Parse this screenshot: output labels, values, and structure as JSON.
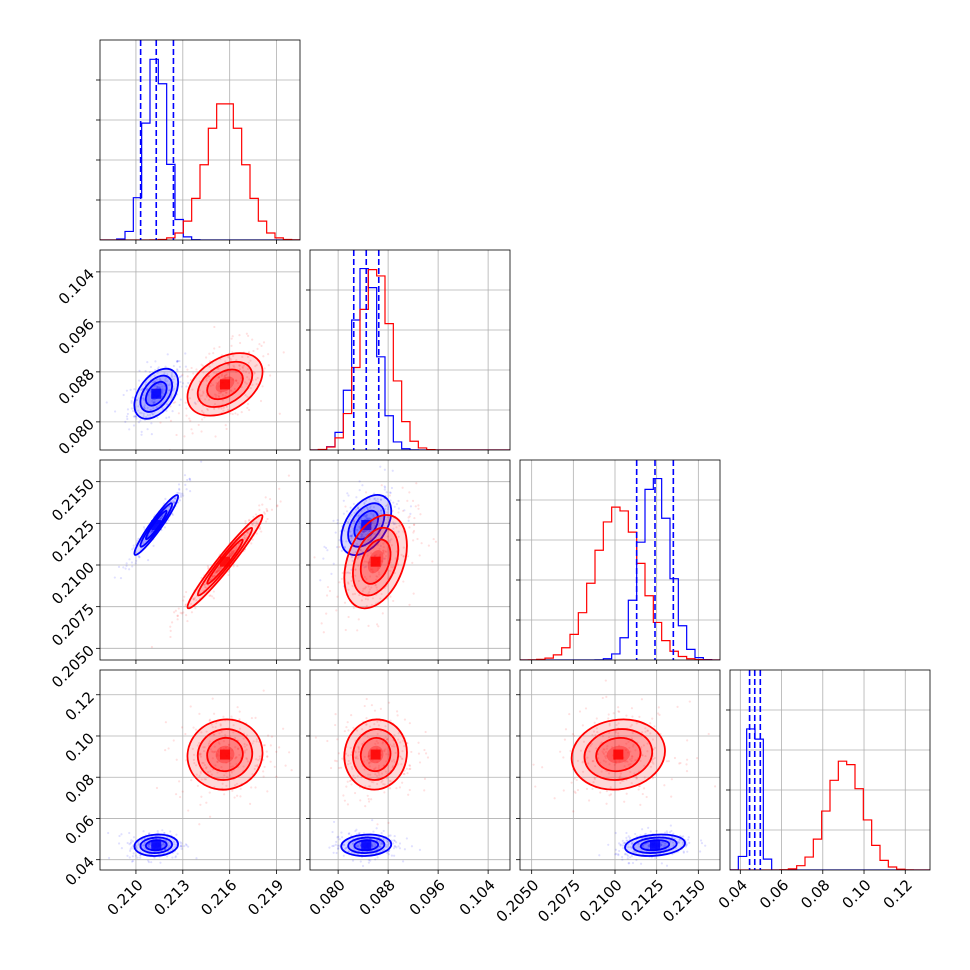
{
  "chart_data": {
    "type": "corner",
    "n_parameters": 4,
    "grid": true,
    "colors": {
      "blue": "#0000ff",
      "red": "#ff0000"
    },
    "series": [
      {
        "color": "#0000ff",
        "mean": [
          0.2113,
          0.0845,
          0.2124,
          0.047
        ],
        "std": [
          0.0007,
          0.002,
          0.0009,
          0.0026
        ],
        "quantiles_shown": true
      },
      {
        "color": "#ff0000",
        "mean": [
          0.2157,
          0.086,
          0.2102,
          0.091
        ],
        "std": [
          0.0012,
          0.0025,
          0.0014,
          0.0085
        ],
        "quantiles_shown": false
      }
    ],
    "quantile_lines": {
      "color": "#0000ff",
      "positions": [
        [
          0.2103,
          0.2113,
          0.2124
        ],
        [
          0.0825,
          0.0845,
          0.0865
        ],
        [
          0.2113,
          0.2124,
          0.2135
        ],
        [
          0.0445,
          0.047,
          0.0497
        ]
      ]
    },
    "axes": [
      {
        "range": [
          0.2077,
          0.2205
        ],
        "ticks": [
          "0.210",
          "0.213",
          "0.216",
          "0.219"
        ],
        "tick_values": [
          0.21,
          0.213,
          0.216,
          0.219
        ]
      },
      {
        "range": [
          0.0755,
          0.1075
        ],
        "ticks": [
          "0.080",
          "0.088",
          "0.096",
          "0.104"
        ],
        "tick_values": [
          0.08,
          0.088,
          0.096,
          0.104
        ]
      },
      {
        "range": [
          0.2043,
          0.2163
        ],
        "ticks": [
          "0.2050",
          "0.2075",
          "0.2100",
          "0.2125",
          "0.2150"
        ],
        "tick_values": [
          0.205,
          0.2075,
          0.21,
          0.2125,
          0.215
        ]
      },
      {
        "range": [
          0.035,
          0.132
        ],
        "ticks": [
          "0.04",
          "0.06",
          "0.08",
          "0.10",
          "0.12"
        ],
        "tick_values": [
          0.04,
          0.06,
          0.08,
          0.1,
          0.12
        ]
      }
    ],
    "y_ticklabels_left_column": true,
    "x_ticklabels_bottom_row": true
  }
}
